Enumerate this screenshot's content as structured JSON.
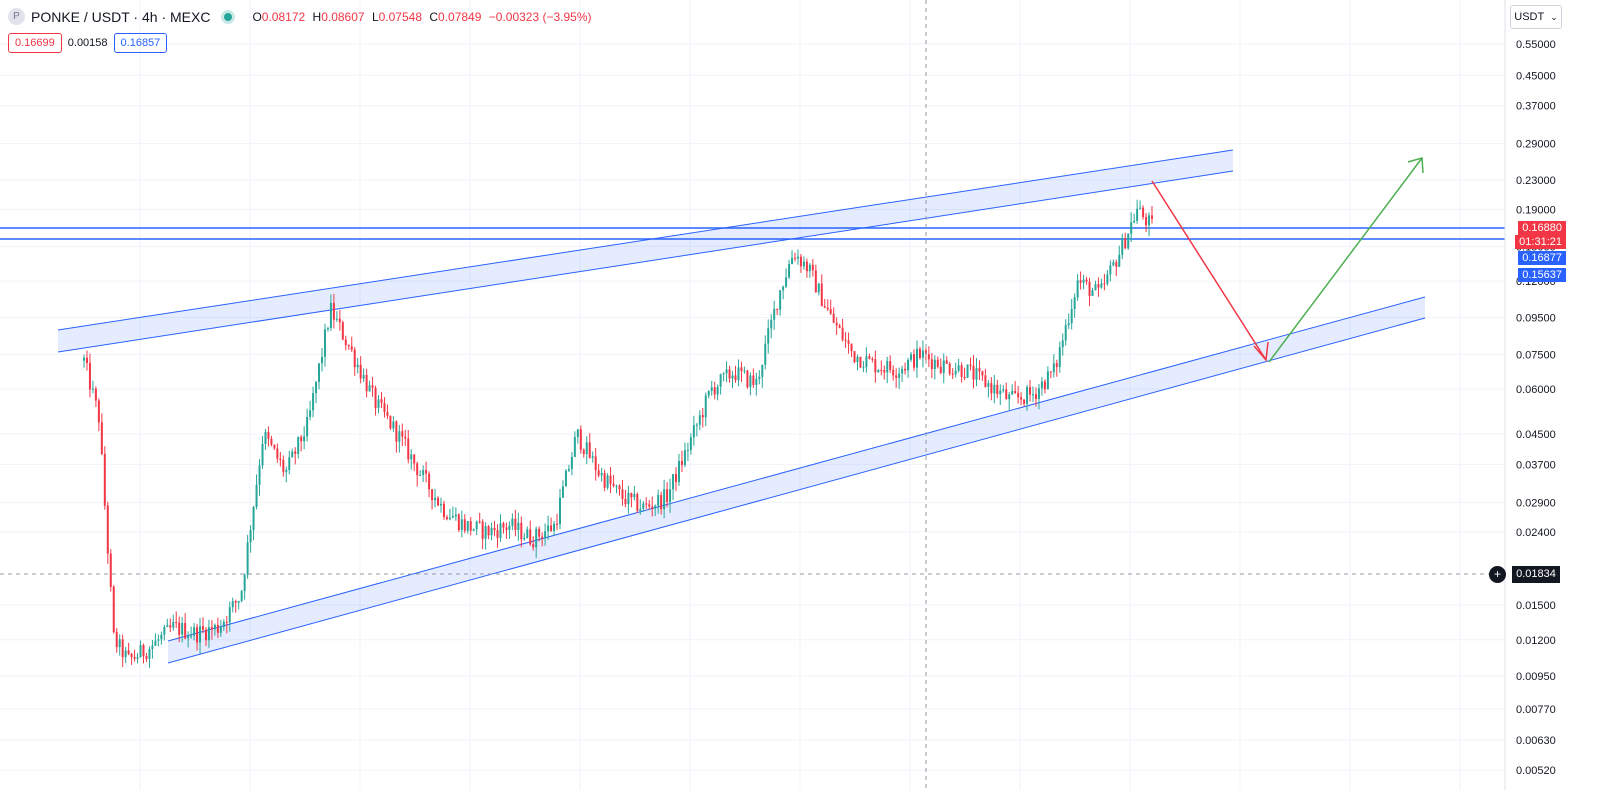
{
  "header": {
    "symbol_icon": "P",
    "title": "PONKE / USDT · 4h · MEXC",
    "ohlc": {
      "o_label": "O",
      "o": "0.08172",
      "h_label": "H",
      "h": "0.08607",
      "l_label": "L",
      "l": "0.07548",
      "c_label": "C",
      "c": "0.07849",
      "change": "−0.00323 (−3.95%)"
    },
    "sell_price": "0.16699",
    "spread": "0.00158",
    "buy_price": "0.16857"
  },
  "currency_selector": {
    "label": "USDT",
    "icon": "chevron-down-icon"
  },
  "price_tags": {
    "last_price": "0.16880",
    "countdown": "01:31:21",
    "level_1": "0.16877",
    "level_2": "0.15637",
    "crosshair_price": "0.01834"
  },
  "colors": {
    "up": "#26a69a",
    "down": "#f23645",
    "channel": "#2962ff",
    "channel_fill": "rgba(41,98,255,0.12)",
    "arrow_down": "#f23645",
    "arrow_up": "#4caf50"
  },
  "chart_data": {
    "type": "candlestick",
    "title": "PONKE / USDT · 4h · MEXC",
    "y_scale": "log",
    "y_ticks": [
      "0.55000",
      "0.45000",
      "0.37000",
      "0.29000",
      "0.23000",
      "0.19000",
      "0.15000",
      "0.12000",
      "0.09500",
      "0.07500",
      "0.06000",
      "0.04500",
      "0.03700",
      "0.02900",
      "0.02400",
      "0.01500",
      "0.01200",
      "0.00950",
      "0.00770",
      "0.00630",
      "0.00520"
    ],
    "ylim": [
      0.0052,
      0.58
    ],
    "grid": true,
    "horizontal_levels": [
      0.16877,
      0.15637
    ],
    "price_path": [
      [
        0.0,
        0.072
      ],
      [
        0.02,
        0.05
      ],
      [
        0.04,
        0.012
      ],
      [
        0.06,
        0.0105
      ],
      [
        0.09,
        0.0115
      ],
      [
        0.12,
        0.013
      ],
      [
        0.15,
        0.0125
      ],
      [
        0.18,
        0.013
      ],
      [
        0.21,
        0.016
      ],
      [
        0.24,
        0.045
      ],
      [
        0.27,
        0.035
      ],
      [
        0.3,
        0.048
      ],
      [
        0.33,
        0.1
      ],
      [
        0.36,
        0.075
      ],
      [
        0.39,
        0.055
      ],
      [
        0.42,
        0.045
      ],
      [
        0.45,
        0.035
      ],
      [
        0.48,
        0.028
      ],
      [
        0.51,
        0.025
      ],
      [
        0.54,
        0.024
      ],
      [
        0.57,
        0.025
      ],
      [
        0.6,
        0.023
      ],
      [
        0.63,
        0.025
      ],
      [
        0.66,
        0.045
      ],
      [
        0.69,
        0.035
      ],
      [
        0.72,
        0.03
      ],
      [
        0.75,
        0.028
      ],
      [
        0.78,
        0.03
      ],
      [
        0.81,
        0.042
      ],
      [
        0.84,
        0.06
      ],
      [
        0.87,
        0.067
      ],
      [
        0.9,
        0.062
      ],
      [
        0.93,
        0.11
      ],
      [
        0.95,
        0.145
      ],
      [
        0.97,
        0.13
      ],
      [
        1.0,
        0.095
      ],
      [
        1.03,
        0.075
      ],
      [
        1.06,
        0.07
      ],
      [
        1.09,
        0.068
      ],
      [
        1.12,
        0.075
      ],
      [
        1.15,
        0.07
      ],
      [
        1.18,
        0.068
      ],
      [
        1.21,
        0.062
      ],
      [
        1.24,
        0.056
      ],
      [
        1.27,
        0.058
      ],
      [
        1.3,
        0.068
      ],
      [
        1.33,
        0.12
      ],
      [
        1.36,
        0.11
      ],
      [
        1.39,
        0.15
      ],
      [
        1.41,
        0.19
      ],
      [
        1.43,
        0.17
      ]
    ]
  }
}
